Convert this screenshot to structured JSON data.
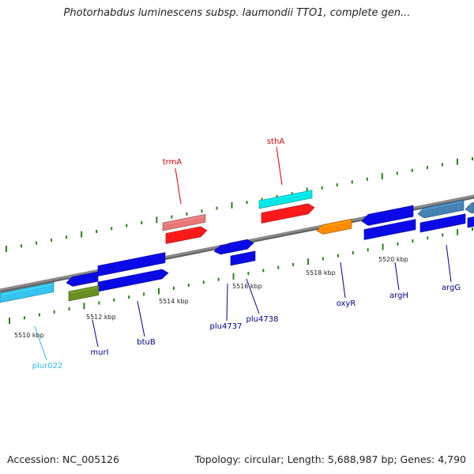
{
  "title": "Photorhabdus luminescens subsp. laumondii TTO1, complete gen...",
  "footer": {
    "accession": "Accession: NC_005126",
    "summary": "Topology: circular; Length: 5,688,987 bp; Genes: 4,790"
  },
  "colors": {
    "dashes": "#2e7d1e",
    "backbone": "#8a8a8a",
    "label_blue": "#00008b",
    "label_red": "#cc0000",
    "label_cyan": "#29b6e8"
  },
  "ticks": [
    {
      "label": "5510 kbp"
    },
    {
      "label": "5512 kbp"
    },
    {
      "label": "5514 kbp"
    },
    {
      "label": "5516 kbp"
    },
    {
      "label": "5518 kbp"
    },
    {
      "label": "5520 kbp"
    }
  ],
  "genes": [
    {
      "name": "trmA",
      "color": "#e87878",
      "strand": "reverse"
    },
    {
      "name": "sthA",
      "color": "#ff1a1a",
      "strand": "forward"
    },
    {
      "name": "plur022",
      "color": "#34c4f0",
      "strand": "none"
    },
    {
      "name": "murI",
      "color": "#0a0ae6",
      "strand": "reverse"
    },
    {
      "name": "btuB",
      "color": "#0a0ae6",
      "strand": "forward"
    },
    {
      "name": "plu4737",
      "color": "#0a0ae6",
      "strand": "reverse"
    },
    {
      "name": "plu4738",
      "color": "#0a0ae6",
      "strand": "forward"
    },
    {
      "name": "oxyR",
      "color": "#0a0ae6",
      "strand": "reverse"
    },
    {
      "name": "argH",
      "color": "#0a0ae6",
      "strand": "forward"
    },
    {
      "name": "argG",
      "color": "#0a0ae6",
      "strand": "forward"
    }
  ],
  "features": [
    {
      "type": "gene",
      "color": "#e87878"
    },
    {
      "type": "gene",
      "color": "#ff1a1a"
    },
    {
      "type": "gene",
      "color": "#00e6e6"
    },
    {
      "type": "gene",
      "color": "#ff1a1a"
    },
    {
      "type": "gene",
      "color": "#34c4f0"
    },
    {
      "type": "gene",
      "color": "#0a0ae6"
    },
    {
      "type": "gene",
      "color": "#0a0ae6"
    },
    {
      "type": "gene",
      "color": "#0a0ae6"
    },
    {
      "type": "gene",
      "color": "#6b8e23"
    },
    {
      "type": "gene",
      "color": "#0a0ae6"
    },
    {
      "type": "gene",
      "color": "#0a0ae6"
    },
    {
      "type": "gene",
      "color": "#0a0ae6"
    },
    {
      "type": "gene",
      "color": "#ff8c00"
    },
    {
      "type": "gene",
      "color": "#0a0ae6"
    },
    {
      "type": "gene",
      "color": "#0a0ae6"
    },
    {
      "type": "gene",
      "color": "#4682b4"
    },
    {
      "type": "gene",
      "color": "#0a0ae6"
    },
    {
      "type": "gene",
      "color": "#4682b4"
    },
    {
      "type": "gene",
      "color": "#0a0ae6"
    }
  ]
}
